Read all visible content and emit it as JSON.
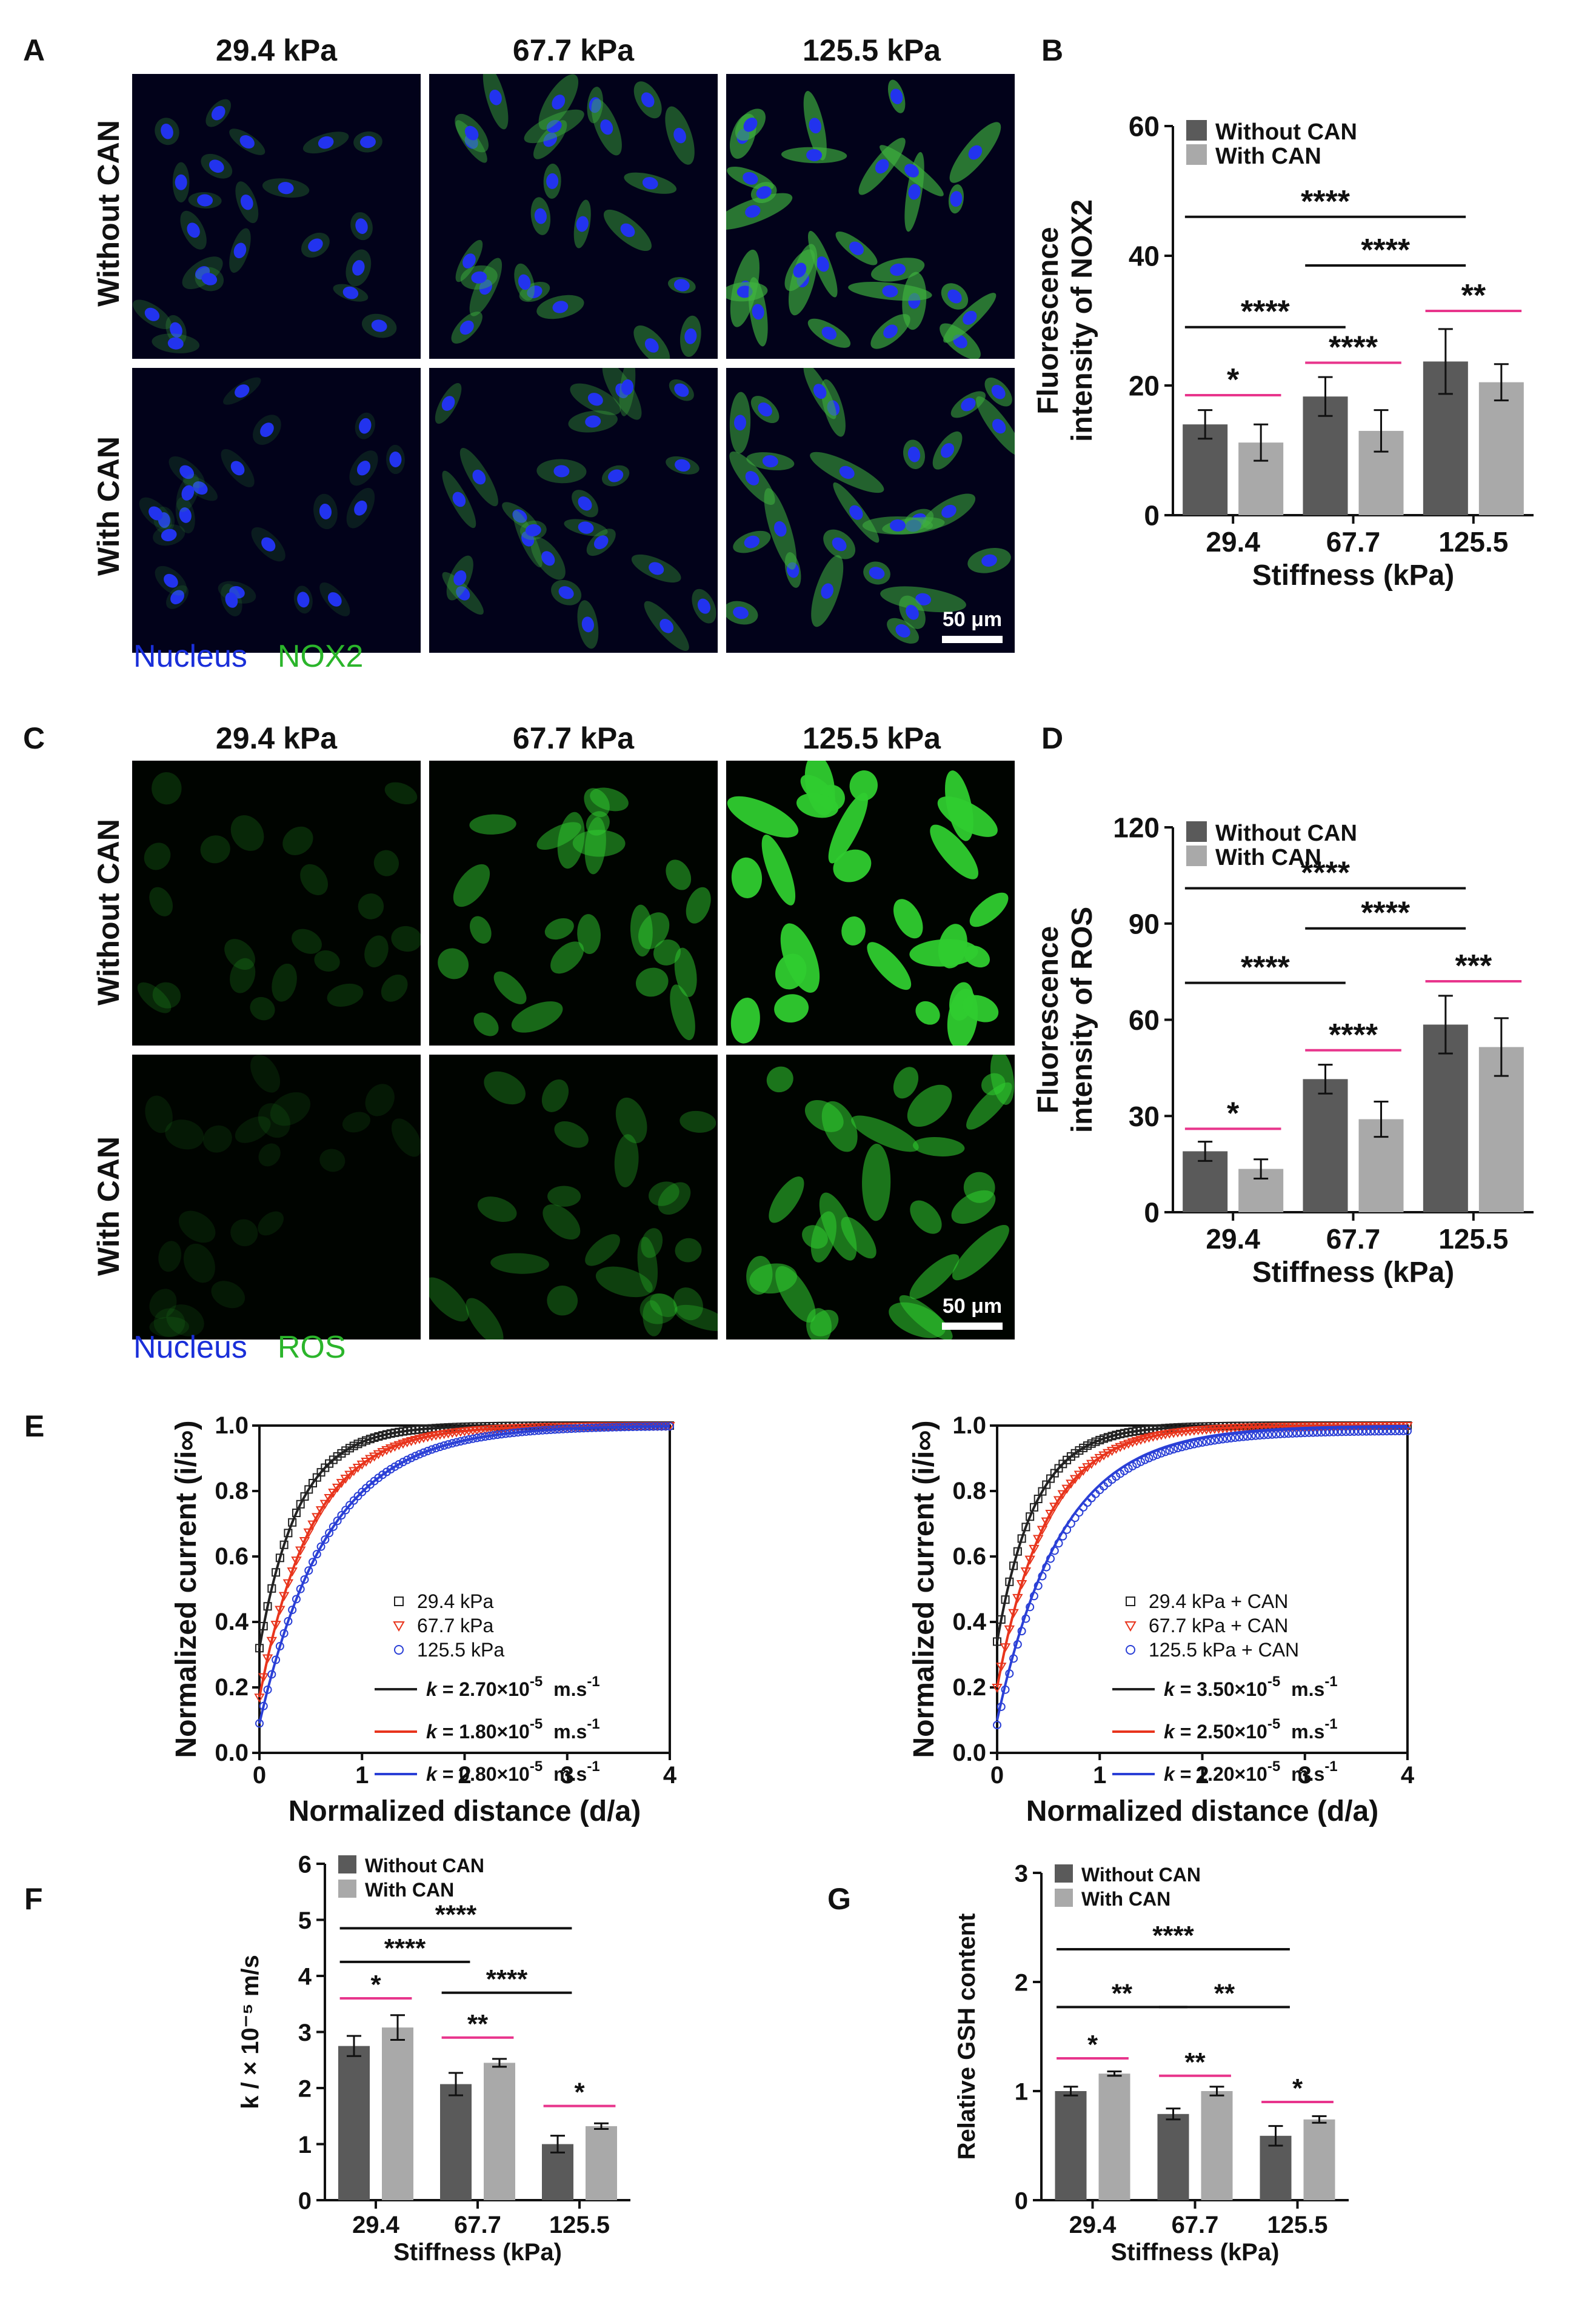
{
  "panels": {
    "A": "A",
    "B": "B",
    "C": "C",
    "D": "D",
    "E": "E",
    "F": "F",
    "G": "G"
  },
  "micrographs": {
    "stiffness_headers": [
      "29.4 kPa",
      "67.7 kPa",
      "125.5 kPa"
    ],
    "row_labels": [
      "Without CAN",
      "With CAN"
    ],
    "scale_bar": "50 μm",
    "top_legend": {
      "nucleus": "Nucleus",
      "marker": "NOX2"
    },
    "bottom_legend": {
      "nucleus": "Nucleus",
      "marker": "ROS"
    },
    "colors": {
      "background": "#02021a",
      "nucleus": "#2233ee",
      "nox2": "#3fb33f",
      "ros": "#2fcc2f"
    }
  },
  "colors": {
    "without_can": "#5a5a5a",
    "with_can": "#a9a9a9",
    "significance_pink": "#e8358c",
    "k_black": "#222222",
    "k_red": "#e8341c",
    "k_blue": "#2a3fd6"
  },
  "chart_data": [
    {
      "id": "B",
      "type": "bar",
      "categories": [
        "29.4",
        "67.7",
        "125.5"
      ],
      "xlabel": "Stiffness (kPa)",
      "ylabel": [
        "Fluorescence",
        "intensity of NOX2"
      ],
      "ylim": [
        0,
        60
      ],
      "yticks": [
        0,
        20,
        40,
        60
      ],
      "series": [
        {
          "name": "Without CAN",
          "values": [
            14,
            18.3,
            23.7
          ],
          "errors": [
            2.2,
            3,
            5
          ]
        },
        {
          "name": "With CAN",
          "values": [
            11.2,
            13,
            20.5
          ],
          "errors": [
            2.8,
            3.2,
            2.8
          ]
        }
      ],
      "significance": [
        {
          "from": [
            0,
            0
          ],
          "to": [
            0,
            1
          ],
          "y": 18.5,
          "label": "*",
          "color": "pink"
        },
        {
          "from": [
            1,
            0
          ],
          "to": [
            1,
            1
          ],
          "y": 23.5,
          "label": "****",
          "color": "pink"
        },
        {
          "from": [
            2,
            0
          ],
          "to": [
            2,
            1
          ],
          "y": 31.5,
          "label": "**",
          "color": "pink"
        },
        {
          "from": [
            0,
            0
          ],
          "to": [
            1,
            0
          ],
          "y": 29,
          "label": "****",
          "color": "black"
        },
        {
          "from": [
            1,
            0
          ],
          "to": [
            2,
            0
          ],
          "y": 38.5,
          "label": "****",
          "color": "black"
        },
        {
          "from": [
            0,
            0
          ],
          "to": [
            2,
            0
          ],
          "y": 46,
          "label": "****",
          "color": "black"
        }
      ],
      "legend": "top-left"
    },
    {
      "id": "D",
      "type": "bar",
      "categories": [
        "29.4",
        "67.7",
        "125.5"
      ],
      "xlabel": "Stiffness (kPa)",
      "ylabel": [
        "Fluorescence",
        "intensity of ROS"
      ],
      "ylim": [
        0,
        120
      ],
      "yticks": [
        0,
        30,
        60,
        90,
        120
      ],
      "series": [
        {
          "name": "Without CAN",
          "values": [
            19,
            41.5,
            58.5
          ],
          "errors": [
            3,
            4.5,
            9
          ]
        },
        {
          "name": "With CAN",
          "values": [
            13.5,
            29,
            51.5
          ],
          "errors": [
            3,
            5.5,
            9
          ]
        }
      ],
      "significance": [
        {
          "from": [
            0,
            0
          ],
          "to": [
            0,
            1
          ],
          "y": 26,
          "label": "*",
          "color": "pink"
        },
        {
          "from": [
            1,
            0
          ],
          "to": [
            1,
            1
          ],
          "y": 50.5,
          "label": "****",
          "color": "pink"
        },
        {
          "from": [
            2,
            0
          ],
          "to": [
            2,
            1
          ],
          "y": 72,
          "label": "***",
          "color": "pink"
        },
        {
          "from": [
            0,
            0
          ],
          "to": [
            1,
            0
          ],
          "y": 71.5,
          "label": "****",
          "color": "black"
        },
        {
          "from": [
            1,
            0
          ],
          "to": [
            2,
            0
          ],
          "y": 88.5,
          "label": "****",
          "color": "black"
        },
        {
          "from": [
            0,
            0
          ],
          "to": [
            2,
            0
          ],
          "y": 101,
          "label": "****",
          "color": "black"
        }
      ],
      "legend": "top-left"
    },
    {
      "id": "E-left",
      "type": "line",
      "xlabel": "Normalized distance (d/a)",
      "ylabel": "Normalized current (i/i∞)",
      "xlim": [
        0,
        4
      ],
      "ylim": [
        0,
        1
      ],
      "xticks": [
        0,
        1,
        2,
        3,
        4
      ],
      "yticks": [
        0.0,
        0.2,
        0.4,
        0.6,
        0.8,
        1.0
      ],
      "series": [
        {
          "name": "29.4 kPa",
          "marker": "square",
          "color": "#222222"
        },
        {
          "name": "67.7 kPa",
          "marker": "triangle-down",
          "color": "#e8341c"
        },
        {
          "name": "125.5 kPa",
          "marker": "circle",
          "color": "#2a3fd6"
        }
      ],
      "fits": [
        {
          "k": "2.70",
          "color": "#222222",
          "i0": 0.32,
          "rate": 2.6
        },
        {
          "k": "1.80",
          "color": "#e8341c",
          "i0": 0.17,
          "rate": 1.95
        },
        {
          "k": "0.80",
          "color": "#2a3fd6",
          "i0": 0.09,
          "rate": 1.5
        }
      ],
      "fit_unit_exp": "-5",
      "fit_unit": "m.s",
      "fit_unit_sup": "-1"
    },
    {
      "id": "E-right",
      "type": "line",
      "xlabel": "Normalized distance (d/a)",
      "ylabel": "Normalized current (i/i∞)",
      "xlim": [
        0,
        4
      ],
      "ylim": [
        0,
        1
      ],
      "xticks": [
        0,
        1,
        2,
        3,
        4
      ],
      "yticks": [
        0.0,
        0.2,
        0.4,
        0.6,
        0.8,
        1.0
      ],
      "series": [
        {
          "name": "29.4 kPa + CAN",
          "marker": "square",
          "color": "#222222"
        },
        {
          "name": "67.7 kPa + CAN",
          "marker": "triangle-down",
          "color": "#e8341c"
        },
        {
          "name": "125.5 kPa + CAN",
          "marker": "circle",
          "color": "#2a3fd6"
        }
      ],
      "fits": [
        {
          "k": "3.50",
          "color": "#222222",
          "i0": 0.34,
          "rate": 2.7
        },
        {
          "k": "2.50",
          "color": "#e8341c",
          "i0": 0.2,
          "rate": 2.1
        },
        {
          "k": "1.20",
          "color": "#2a3fd6",
          "i0": 0.1,
          "rate": 1.6
        }
      ],
      "fit_unit_exp": "-5",
      "fit_unit": "m.s",
      "fit_unit_sup": "-1"
    },
    {
      "id": "F",
      "type": "bar",
      "categories": [
        "29.4",
        "67.7",
        "125.5"
      ],
      "xlabel": "Stiffness (kPa)",
      "ylabel": "k / × 10⁻⁵ m/s",
      "ylim": [
        0,
        6
      ],
      "yticks": [
        0,
        1,
        2,
        3,
        4,
        5,
        6
      ],
      "series": [
        {
          "name": "Without CAN",
          "values": [
            2.75,
            2.07,
            1.0
          ],
          "errors": [
            0.18,
            0.2,
            0.15
          ]
        },
        {
          "name": "With CAN",
          "values": [
            3.08,
            2.45,
            1.32
          ],
          "errors": [
            0.22,
            0.07,
            0.05
          ]
        }
      ],
      "significance": [
        {
          "from": [
            0,
            0
          ],
          "to": [
            0,
            1
          ],
          "y": 3.6,
          "label": "*",
          "color": "pink"
        },
        {
          "from": [
            1,
            0
          ],
          "to": [
            1,
            1
          ],
          "y": 2.9,
          "label": "**",
          "color": "pink"
        },
        {
          "from": [
            2,
            0
          ],
          "to": [
            2,
            1
          ],
          "y": 1.68,
          "label": "*",
          "color": "pink"
        },
        {
          "from": [
            0,
            0
          ],
          "to": [
            1,
            0
          ],
          "y": 4.25,
          "label": "****",
          "color": "black"
        },
        {
          "from": [
            1,
            0
          ],
          "to": [
            2,
            0
          ],
          "y": 3.7,
          "label": "****",
          "color": "black"
        },
        {
          "from": [
            0,
            0
          ],
          "to": [
            2,
            0
          ],
          "y": 4.85,
          "label": "****",
          "color": "black"
        }
      ],
      "legend": "top-left"
    },
    {
      "id": "G",
      "type": "bar",
      "categories": [
        "29.4",
        "67.7",
        "125.5"
      ],
      "xlabel": "Stiffness (kPa)",
      "ylabel": "Relative GSH content",
      "ylim": [
        0,
        3
      ],
      "yticks": [
        0,
        1,
        2,
        3
      ],
      "series": [
        {
          "name": "Without CAN",
          "values": [
            1.0,
            0.79,
            0.59
          ],
          "errors": [
            0.04,
            0.05,
            0.09
          ]
        },
        {
          "name": "With CAN",
          "values": [
            1.16,
            1.0,
            0.74
          ],
          "errors": [
            0.02,
            0.04,
            0.03
          ]
        }
      ],
      "significance": [
        {
          "from": [
            0,
            0
          ],
          "to": [
            0,
            1
          ],
          "y": 1.3,
          "label": "*",
          "color": "pink"
        },
        {
          "from": [
            1,
            0
          ],
          "to": [
            1,
            1
          ],
          "y": 1.14,
          "label": "**",
          "color": "pink"
        },
        {
          "from": [
            2,
            0
          ],
          "to": [
            2,
            1
          ],
          "y": 0.9,
          "label": "*",
          "color": "pink"
        },
        {
          "from": [
            0,
            0
          ],
          "to": [
            1,
            0
          ],
          "y": 1.77,
          "label": "**",
          "color": "black"
        },
        {
          "from": [
            1,
            0
          ],
          "to": [
            2,
            0
          ],
          "y": 1.77,
          "label": "**",
          "color": "black"
        },
        {
          "from": [
            0,
            0
          ],
          "to": [
            2,
            0
          ],
          "y": 2.3,
          "label": "****",
          "color": "black"
        }
      ],
      "legend": "top-left"
    }
  ]
}
